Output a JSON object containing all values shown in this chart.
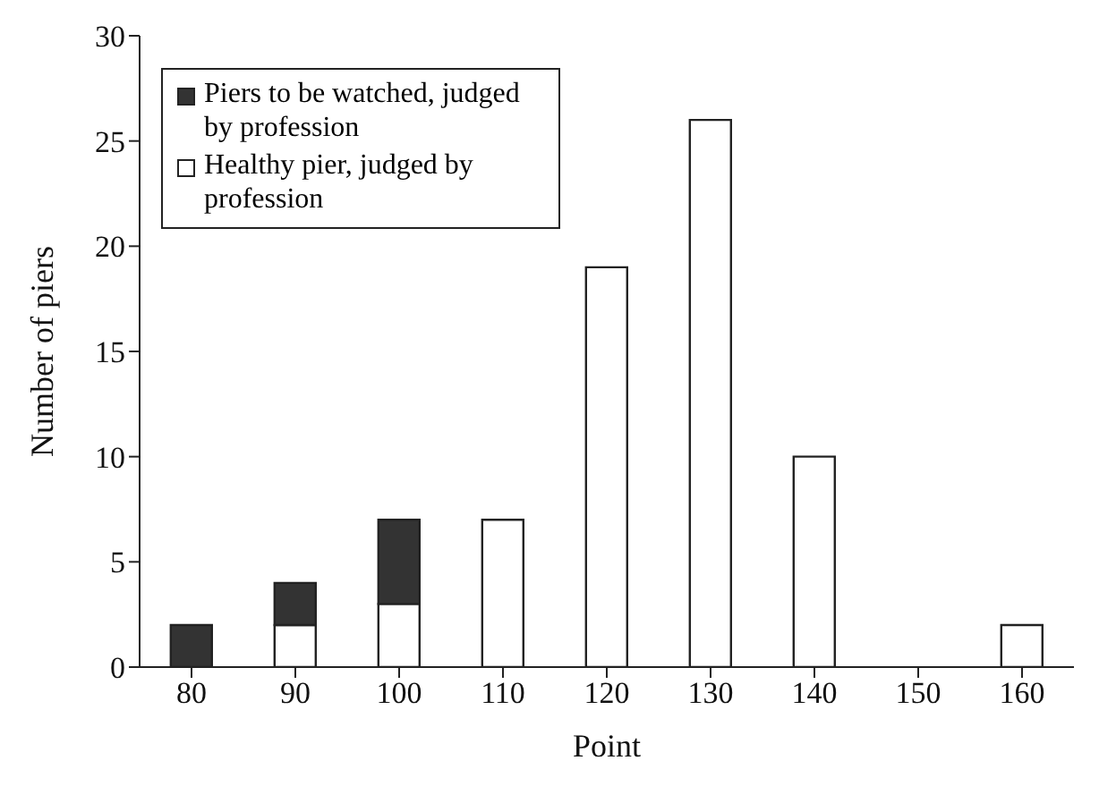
{
  "chart_data": {
    "type": "bar",
    "xlabel": "Point",
    "ylabel": "Number of piers",
    "categories": [
      "80",
      "90",
      "100",
      "110",
      "120",
      "130",
      "140",
      "150",
      "160"
    ],
    "stacked": true,
    "legend": "top left",
    "ylim": [
      0,
      30
    ],
    "yticks": [
      0,
      5,
      10,
      15,
      20,
      25,
      30
    ],
    "series": [
      {
        "name": "Healthy pier, judged by profession",
        "color": "#ffffff",
        "values": [
          0,
          2,
          3,
          7,
          19,
          26,
          10,
          0,
          2
        ]
      },
      {
        "name": "Piers to be watched, judged by profession",
        "color": "#333333",
        "values": [
          2,
          2,
          4,
          0,
          0,
          0,
          0,
          0,
          0
        ]
      }
    ]
  }
}
